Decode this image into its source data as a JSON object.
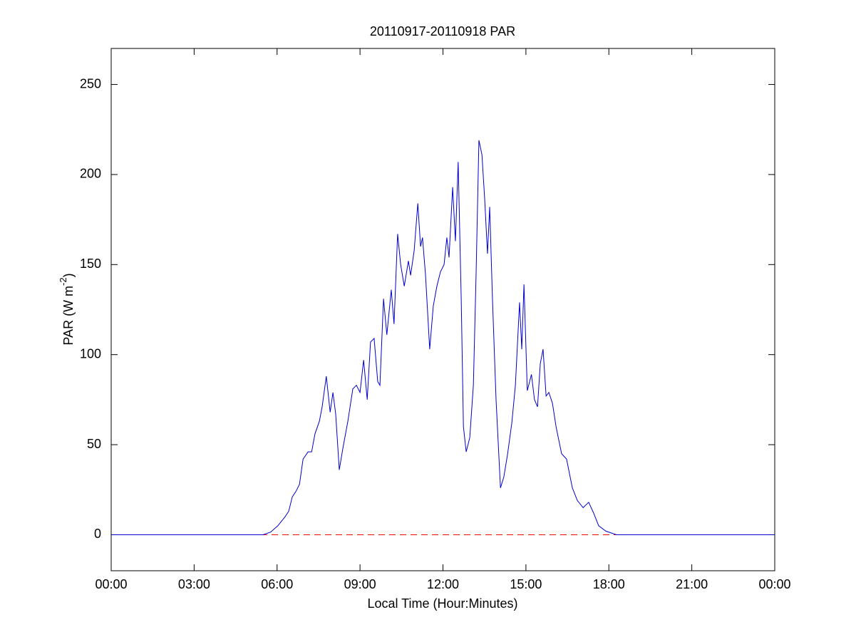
{
  "chart_data": {
    "type": "line",
    "title": "20110917-20110918 PAR",
    "xlabel": "Local Time (Hour:Minutes)",
    "ylabel": {
      "text": "PAR (W m",
      "superscript": "-2",
      "suffix": ")"
    },
    "xlim": [
      0,
      24
    ],
    "xticks": [
      {
        "value": 0,
        "label": "00:00"
      },
      {
        "value": 3,
        "label": "03:00"
      },
      {
        "value": 6,
        "label": "06:00"
      },
      {
        "value": 9,
        "label": "09:00"
      },
      {
        "value": 12,
        "label": "12:00"
      },
      {
        "value": 15,
        "label": "15:00"
      },
      {
        "value": 18,
        "label": "18:00"
      },
      {
        "value": 21,
        "label": "21:00"
      },
      {
        "value": 24,
        "label": "00:00"
      }
    ],
    "ylim": [
      -20,
      270
    ],
    "yticks": [
      0,
      50,
      100,
      150,
      200,
      250
    ],
    "reference_line": {
      "value": 0,
      "color": "#ff0000",
      "style": "dashed"
    },
    "x": [
      0,
      5.49,
      5.77,
      6.03,
      6.29,
      6.42,
      6.55,
      6.68,
      6.81,
      6.94,
      7.12,
      7.25,
      7.37,
      7.53,
      7.63,
      7.78,
      7.92,
      8.02,
      8.12,
      8.25,
      8.38,
      8.56,
      8.74,
      8.87,
      9.0,
      9.13,
      9.26,
      9.38,
      9.51,
      9.64,
      9.72,
      9.85,
      9.97,
      10.13,
      10.23,
      10.36,
      10.47,
      10.6,
      10.75,
      10.83,
      10.96,
      11.09,
      11.19,
      11.26,
      11.37,
      11.52,
      11.65,
      11.78,
      11.91,
      12.04,
      12.14,
      12.22,
      12.35,
      12.45,
      12.55,
      12.66,
      12.74,
      12.84,
      12.97,
      13.1,
      13.2,
      13.3,
      13.41,
      13.51,
      13.61,
      13.69,
      13.79,
      13.92,
      14.08,
      14.2,
      14.33,
      14.49,
      14.62,
      14.77,
      14.85,
      14.93,
      15.05,
      15.2,
      15.31,
      15.42,
      15.52,
      15.62,
      15.73,
      15.83,
      15.96,
      16.09,
      16.29,
      16.47,
      16.68,
      16.86,
      17.07,
      17.27,
      17.45,
      17.63,
      17.89,
      18.28,
      24
    ],
    "series": [
      {
        "color": "#0000cc",
        "values": [
          0,
          0,
          1.5,
          5,
          10,
          13,
          21,
          24,
          28,
          42,
          46,
          46,
          56,
          63,
          71,
          88,
          68,
          79,
          67,
          36,
          48,
          63,
          81,
          83,
          79,
          97,
          75,
          107,
          109,
          85,
          83,
          131,
          111,
          136,
          117,
          167,
          150,
          138,
          152,
          144,
          158,
          184,
          160,
          165,
          144,
          103,
          127,
          138,
          146,
          150,
          165,
          154,
          193,
          163,
          207,
          131,
          60,
          46,
          54,
          83,
          146,
          219,
          211,
          186,
          156,
          182,
          131,
          75,
          26,
          32,
          44,
          62,
          83,
          129,
          103,
          139,
          80,
          89,
          75,
          71,
          95,
          103,
          77,
          79,
          73,
          60,
          45,
          42,
          26,
          19,
          15,
          18,
          12,
          5,
          2,
          0,
          0
        ]
      }
    ]
  }
}
